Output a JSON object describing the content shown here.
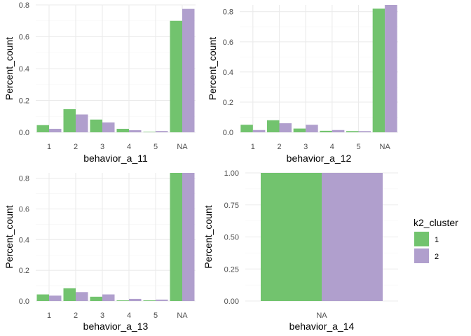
{
  "colors": {
    "cluster_1": "#72c36e",
    "cluster_2": "#b09fcd",
    "grid_major": "#ebebeb",
    "grid_minor": "#f5f5f5"
  },
  "legend": {
    "title": "k2_cluster",
    "entries": [
      {
        "label": "1",
        "color": "#72c36e"
      },
      {
        "label": "2",
        "color": "#b09fcd"
      }
    ]
  },
  "chart_data": [
    {
      "type": "bar",
      "xlabel": "behavior_a_11",
      "ylabel": "Percent_count",
      "categories": [
        "1",
        "2",
        "3",
        "4",
        "5",
        "NA"
      ],
      "ylim": [
        0,
        0.8
      ],
      "yticks": [
        0,
        0.2,
        0.4,
        0.6,
        0.8
      ],
      "ytick_labels": [
        "0.0",
        "0.2",
        "0.4",
        "0.6",
        "0.8"
      ],
      "series": [
        {
          "name": "1",
          "values": [
            0.045,
            0.145,
            0.08,
            0.022,
            0.003,
            0.7
          ]
        },
        {
          "name": "2",
          "values": [
            0.022,
            0.112,
            0.062,
            0.013,
            0.008,
            0.775
          ]
        }
      ]
    },
    {
      "type": "bar",
      "xlabel": "behavior_a_12",
      "ylabel": "Percent_count",
      "categories": [
        "1",
        "2",
        "3",
        "4",
        "5",
        "NA"
      ],
      "ylim": [
        0,
        0.845
      ],
      "yticks": [
        0,
        0.2,
        0.4,
        0.6,
        0.8
      ],
      "ytick_labels": [
        "0.0",
        "0.2",
        "0.4",
        "0.6",
        "0.8"
      ],
      "series": [
        {
          "name": "1",
          "values": [
            0.05,
            0.08,
            0.025,
            0.01,
            0.008,
            0.82
          ]
        },
        {
          "name": "2",
          "values": [
            0.015,
            0.06,
            0.05,
            0.015,
            0.008,
            0.845
          ]
        }
      ]
    },
    {
      "type": "bar",
      "xlabel": "behavior_a_13",
      "ylabel": "Percent_count",
      "categories": [
        "1",
        "2",
        "3",
        "4",
        "5",
        "NA"
      ],
      "ylim": [
        0,
        0.835
      ],
      "yticks": [
        0,
        0.2,
        0.4,
        0.6,
        0.8
      ],
      "ytick_labels": [
        "0.0",
        "0.2",
        "0.4",
        "0.6",
        "0.8"
      ],
      "series": [
        {
          "name": "1",
          "values": [
            0.043,
            0.083,
            0.028,
            0.004,
            0.004,
            0.835
          ]
        },
        {
          "name": "2",
          "values": [
            0.035,
            0.058,
            0.043,
            0.014,
            0.009,
            0.835
          ]
        }
      ]
    },
    {
      "type": "bar",
      "xlabel": "behavior_a_14",
      "ylabel": "Percent_count",
      "categories": [
        "NA"
      ],
      "ylim": [
        0,
        1.0
      ],
      "yticks": [
        0,
        0.25,
        0.5,
        0.75,
        1.0
      ],
      "ytick_labels": [
        "0.00",
        "0.25",
        "0.50",
        "0.75",
        "1.00"
      ],
      "series": [
        {
          "name": "1",
          "values": [
            1.0
          ]
        },
        {
          "name": "2",
          "values": [
            1.0
          ]
        }
      ]
    }
  ]
}
